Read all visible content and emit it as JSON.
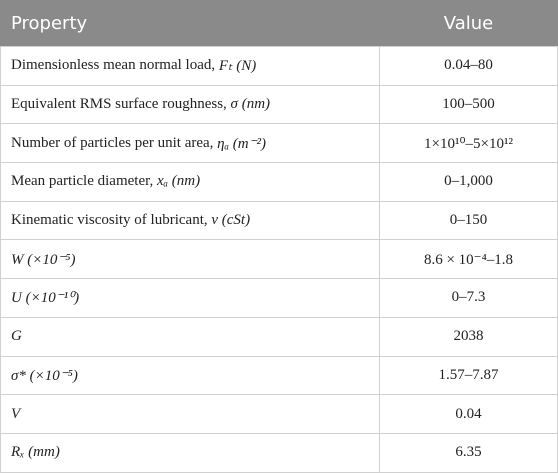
{
  "table": {
    "header": [
      "Property",
      "Value"
    ],
    "rows": [
      {
        "label": "Dimensionless mean normal load, ",
        "symbol": "Fₜ (N)",
        "value": "0.04–80"
      },
      {
        "label": "Equivalent RMS surface roughness, ",
        "symbol": "σ (nm)",
        "value": "100–500"
      },
      {
        "label": "Number of particles per unit area, ",
        "symbol": "ηₐ (m⁻²)",
        "value": "1×10¹⁰–5×10¹²"
      },
      {
        "label": "Mean particle diameter, ",
        "symbol": "xₐ (nm)",
        "value": "0–1,000"
      },
      {
        "label": "Kinematic viscosity of lubricant, ",
        "symbol": "ν (cSt)",
        "value": "0–150"
      },
      {
        "symbol": "W (×10⁻⁵)",
        "value": "8.6 × 10⁻⁴–1.8"
      },
      {
        "symbol": "U (×10⁻¹⁰)",
        "value": "0–7.3"
      },
      {
        "symbol": "G",
        "value": "2038"
      },
      {
        "symbol": "σ* (×10⁻⁵)",
        "value": "1.57–7.87"
      },
      {
        "symbol": "V",
        "value": "0.04"
      },
      {
        "symbol": "Rₓ (mm)",
        "value": "6.35"
      }
    ]
  }
}
